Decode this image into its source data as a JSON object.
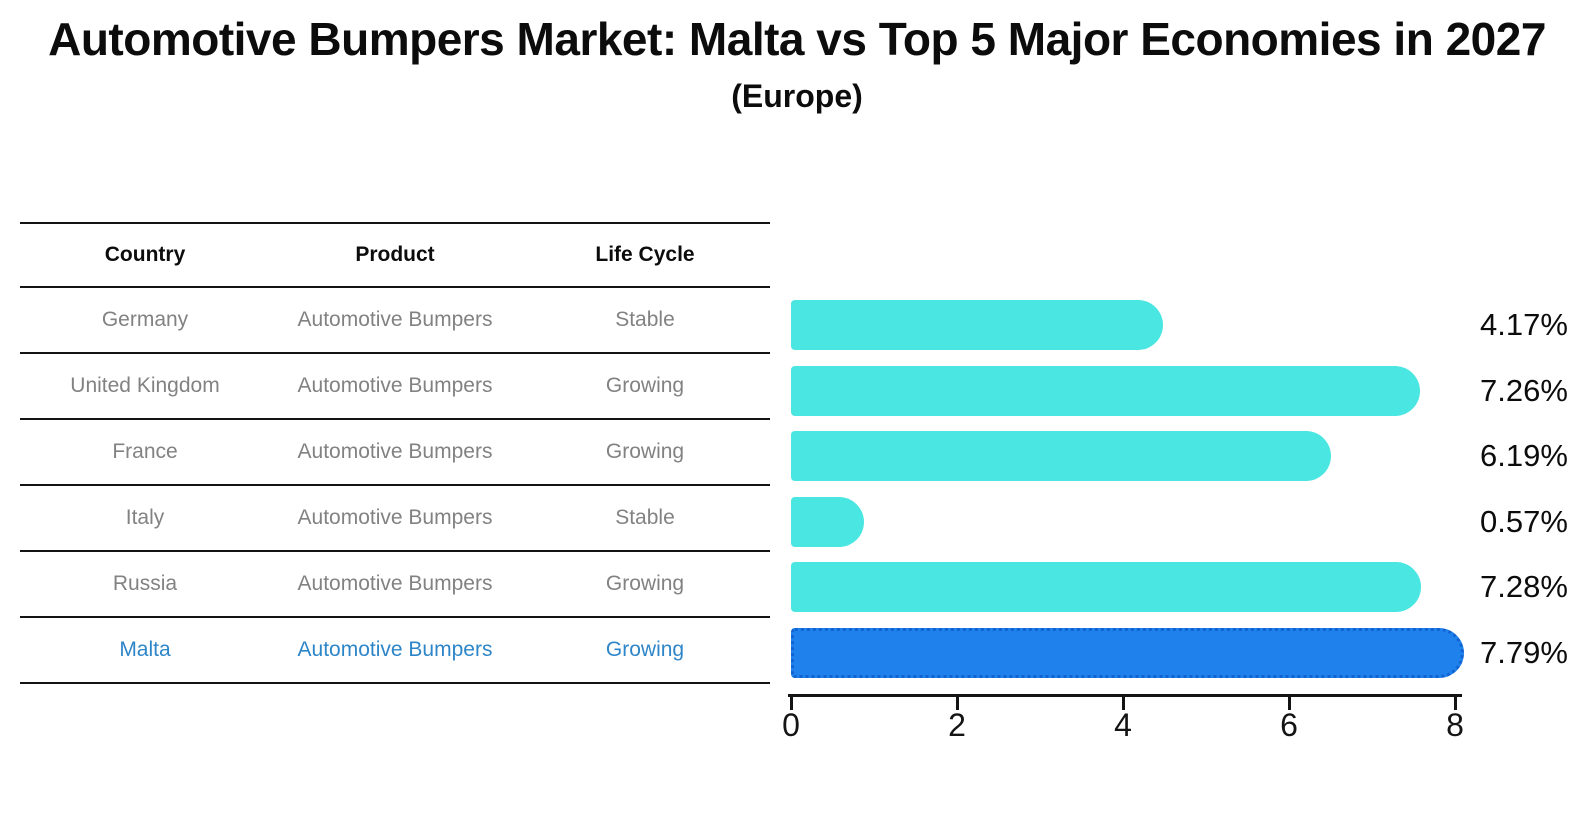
{
  "chart_data": {
    "type": "bar",
    "orientation": "horizontal",
    "title": "Automotive Bumpers Market: Malta vs Top 5 Major Economies in 2027",
    "subtitle": "(Europe)",
    "categories": [
      "Germany",
      "United Kingdom",
      "France",
      "Italy",
      "Russia",
      "Malta"
    ],
    "values": [
      4.17,
      7.26,
      6.19,
      0.57,
      7.28,
      7.79
    ],
    "value_labels": [
      "4.17%",
      "7.26%",
      "6.19%",
      "0.57%",
      "7.28%",
      "7.79%"
    ],
    "xlim": [
      0,
      8
    ],
    "xticks": [
      "0",
      "2",
      "4",
      "6",
      "8"
    ],
    "xlabel": "",
    "ylabel": "",
    "grid": false,
    "legend": false,
    "highlight_index": 5,
    "bar_color": "#4AE6E2",
    "highlight_bar_color": "#1E81EC",
    "highlight_border_color": "#1163D2"
  },
  "table": {
    "headers": [
      "Country",
      "Product",
      "Life Cycle"
    ],
    "rows": [
      {
        "country": "Germany",
        "product": "Automotive Bumpers",
        "life_cycle": "Stable",
        "highlight": false
      },
      {
        "country": "United Kingdom",
        "product": "Automotive Bumpers",
        "life_cycle": "Growing",
        "highlight": false
      },
      {
        "country": "France",
        "product": "Automotive Bumpers",
        "life_cycle": "Growing",
        "highlight": false
      },
      {
        "country": "Italy",
        "product": "Automotive Bumpers",
        "life_cycle": "Stable",
        "highlight": false
      },
      {
        "country": "Russia",
        "product": "Automotive Bumpers",
        "life_cycle": "Growing",
        "highlight": false
      },
      {
        "country": "Malta",
        "product": "Automotive Bumpers",
        "life_cycle": "Growing",
        "highlight": true
      }
    ]
  },
  "colors": {
    "text": "#0c0c0c",
    "muted_text": "#828282",
    "highlight_text": "#2E86C8",
    "line": "#141414",
    "background": "#ffffff"
  }
}
